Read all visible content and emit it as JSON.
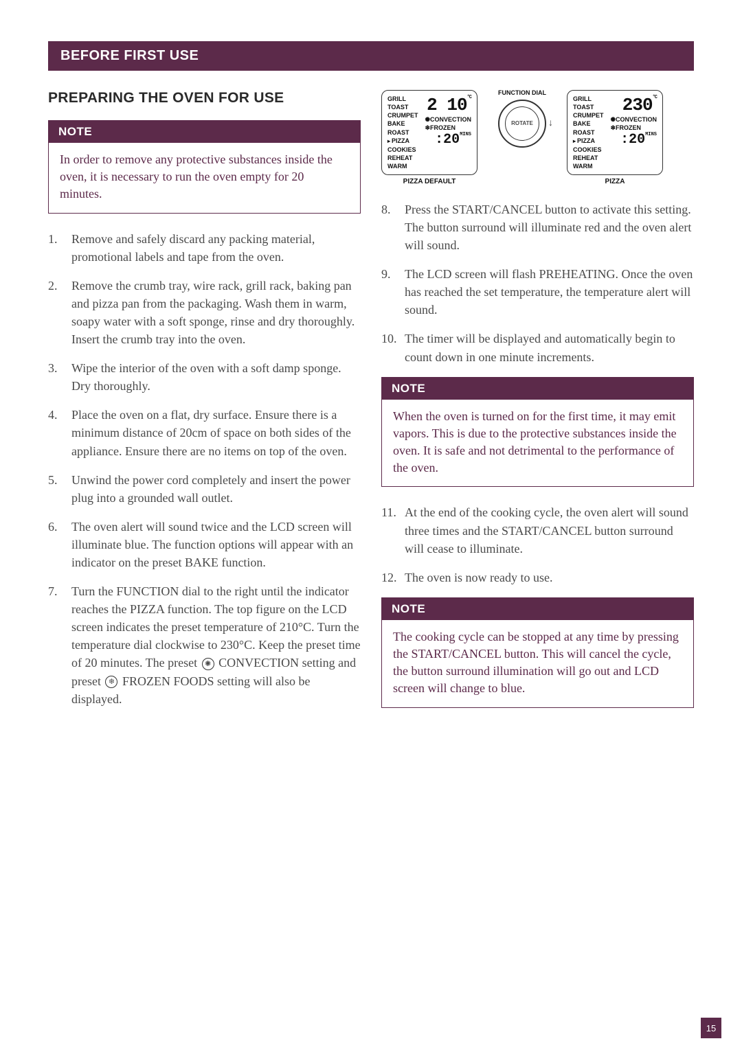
{
  "sectionHeader": "BEFORE FIRST USE",
  "subhead": "PREPARING THE OVEN FOR USE",
  "note1": {
    "title": "NOTE",
    "body": "In order to remove any protective substances inside the oven, it is necessary to run the oven empty for 20 minutes."
  },
  "stepsLeft": [
    {
      "n": "1.",
      "t": "Remove and safely discard any packing material, promotional labels and tape from the oven."
    },
    {
      "n": "2.",
      "t": "Remove the crumb tray, wire rack, grill rack, baking pan and pizza pan from the packaging. Wash them in warm, soapy water with a soft sponge, rinse and dry thoroughly. Insert the crumb tray into the oven."
    },
    {
      "n": "3.",
      "t": "Wipe the interior of the oven with a soft damp sponge. Dry thoroughly."
    },
    {
      "n": "4.",
      "t": "Place the oven on a flat, dry surface. Ensure there is a minimum distance of 20cm of space on both sides of the appliance. Ensure there are no items on top of the oven."
    },
    {
      "n": "5.",
      "t": "Unwind the power cord completely and insert the power plug into a grounded wall outlet."
    },
    {
      "n": "6.",
      "t": "The oven alert will sound twice and the LCD screen will illuminate blue. The function options will appear with an indicator on the preset BAKE function."
    }
  ],
  "step7": {
    "n": "7.",
    "pre": "Turn the FUNCTION dial to the right until the indicator reaches the PIZZA function. The top figure on the LCD screen indicates the preset temperature of 210°C. Turn the temperature dial clockwise to 230°C. Keep the preset time of 20 minutes. The preset ",
    "conv": " CONVECTION setting and preset ",
    "froz": " FROZEN FOODS setting will also be displayed."
  },
  "lcd": {
    "functions": [
      "GRILL",
      "TOAST",
      "CRUMPET",
      "BAKE",
      "ROAST",
      "PIZZA",
      "COOKIES",
      "REHEAT",
      "WARM"
    ],
    "convection": "CONVECTION",
    "frozen": "FROZEN",
    "temp1": "2 10",
    "temp2": "230",
    "time": ":20",
    "mins": "MINS",
    "degC": "°C",
    "caption1": "PIZZA DEFAULT",
    "caption2": "PIZZA",
    "dialLabel": "FUNCTION DIAL",
    "rotate": "ROTATE"
  },
  "stepsRight1": [
    {
      "n": "8.",
      "t": "Press the START/CANCEL button to activate this setting. The button surround will illuminate red and the oven alert will sound."
    },
    {
      "n": "9.",
      "t": "The LCD screen will flash PREHEATING. Once the oven has reached the set temperature, the temperature alert will sound."
    },
    {
      "n": "10.",
      "t": "The timer will be displayed and automatically begin to count down in one minute increments."
    }
  ],
  "note2": {
    "title": "NOTE",
    "body": "When the oven is turned on for the first time, it may emit vapors. This is due to the protective substances inside the oven. It is safe and not detrimental to the performance of the oven."
  },
  "stepsRight2": [
    {
      "n": "11.",
      "t": "At the end of the cooking cycle, the oven alert will sound three times and the START/CANCEL button surround will cease to illuminate."
    },
    {
      "n": "12.",
      "t": "The oven is now ready to use."
    }
  ],
  "note3": {
    "title": "NOTE",
    "body": "The cooking cycle can be stopped at any time by pressing the START/CANCEL button. This will cancel the cycle, the button surround illumination will go out and LCD screen will change to blue."
  },
  "pageNum": "15"
}
